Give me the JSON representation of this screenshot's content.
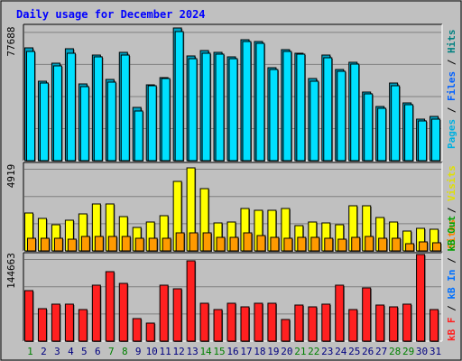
{
  "chart_data": {
    "type": "bar",
    "title": "Daily usage for December 2024",
    "categories": [
      "1",
      "2",
      "3",
      "4",
      "5",
      "6",
      "7",
      "8",
      "9",
      "10",
      "11",
      "12",
      "13",
      "14",
      "15",
      "16",
      "17",
      "18",
      "19",
      "20",
      "21",
      "22",
      "23",
      "24",
      "25",
      "26",
      "27",
      "28",
      "29",
      "30",
      "31"
    ],
    "weekend_days": [
      "1",
      "7",
      "8",
      "14",
      "15",
      "21",
      "22",
      "28",
      "29"
    ],
    "panels": [
      {
        "name": "hits",
        "ymax_label": "77688",
        "ylim": [
          0,
          77688
        ],
        "legend": [
          "Pages",
          "Files",
          "Hits"
        ],
        "series": [
          {
            "name": "Hits",
            "values": [
              65150,
              46000,
              56300,
              64800,
              44500,
              60800,
              47000,
              62600,
              30700,
              44000,
              48000,
              76800,
              60300,
              63400,
              62400,
              59700,
              70100,
              68700,
              53800,
              64100,
              62300,
              47400,
              60900,
              52900,
              56900,
              39800,
              31400,
              45000,
              33600,
              24000,
              25400
            ]
          },
          {
            "name": "Files",
            "values": [
              62960,
              45000,
              55000,
              62300,
              43000,
              59800,
              45600,
              61000,
              28800,
              43100,
              47300,
              74400,
              59000,
              62000,
              61600,
              59000,
              68900,
              67600,
              52700,
              63200,
              61300,
              46000,
              59400,
              51600,
              55800,
              38600,
              30500,
              43400,
              32400,
              23000,
              24200
            ]
          },
          {
            "name": "Pages",
            "values": [
              8000,
              5000,
              6000,
              7000,
              4000,
              8000,
              5000,
              7000,
              3000,
              4000,
              5000,
              9000,
              7000,
              7000,
              6000,
              6000,
              8000,
              7000,
              6000,
              6000,
              7000,
              5000,
              7000,
              6000,
              6000,
              4000,
              3000,
              5000,
              4000,
              2000,
              3000
            ]
          }
        ]
      },
      {
        "name": "visits",
        "ymax_label": "4919",
        "ylim": [
          0,
          4919
        ],
        "legend": [
          "Sites",
          "Visits"
        ],
        "series": [
          {
            "name": "Visits",
            "values": [
              2130,
              1820,
              1510,
              1760,
              2080,
              2680,
              2680,
              1950,
              1310,
              1640,
              1990,
              3940,
              4710,
              3560,
              1600,
              1630,
              2400,
              2290,
              2320,
              2430,
              1420,
              1630,
              1600,
              1510,
              2560,
              2560,
              1920,
              1650,
              1140,
              1300,
              1220
            ]
          },
          {
            "name": "Sites",
            "values": [
              740,
              740,
              720,
              690,
              800,
              820,
              820,
              800,
              720,
              710,
              740,
              1040,
              1010,
              1010,
              770,
              780,
              1030,
              880,
              760,
              740,
              750,
              760,
              740,
              690,
              770,
              800,
              740,
              700,
              390,
              490,
              460
            ]
          }
        ]
      },
      {
        "name": "kbytes",
        "ymax_label": "144663",
        "ylim": [
          0,
          144663
        ],
        "legend": [
          "kB F",
          "kB In",
          "kB Out"
        ],
        "series": [
          {
            "name": "kB F",
            "values": [
              84000,
              54000,
              62000,
              62000,
              53000,
              93000,
              116000,
              96000,
              38000,
              30000,
              93000,
              88000,
              134000,
              64000,
              53000,
              64000,
              58000,
              63000,
              63000,
              36000,
              61000,
              58000,
              62000,
              93000,
              52000,
              89000,
              61000,
              58000,
              62000,
              144663,
              52000
            ]
          }
        ]
      }
    ]
  },
  "colors": {
    "background": "#c0c0c0",
    "plot_bg": "#c0c0c0",
    "border_dark": "#000000",
    "hits": "#00a0a0",
    "files": "#00e0ff",
    "pages": "#00c0e0",
    "visits": "#ffff00",
    "sites": "#ff9a00",
    "kbytes": "#ff2020",
    "title": "#0000ff",
    "weekday_label": "#000080",
    "weekend_label": "#00a000"
  }
}
